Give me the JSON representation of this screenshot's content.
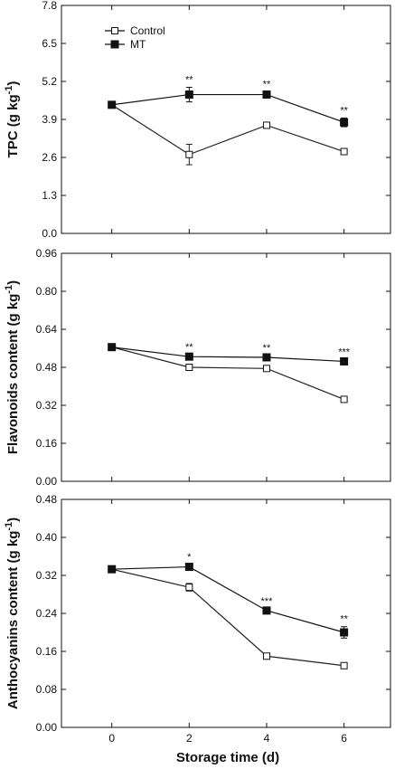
{
  "figure": {
    "xlabel": "Storage time (d)"
  },
  "chart_data": [
    {
      "type": "line",
      "x": [
        0,
        2,
        4,
        6
      ],
      "xlim": [
        -1.3,
        7.2
      ],
      "xticks": [
        "0",
        "2",
        "4",
        "6"
      ],
      "ylabel_prefix": "TPC (g kg",
      "ylabel_sup": "-1",
      "ylabel_suffix": ")",
      "ylim": [
        0.0,
        7.8
      ],
      "yticks": [
        "0.0",
        "1.3",
        "2.6",
        "3.9",
        "5.2",
        "6.5",
        "7.8"
      ],
      "series": [
        {
          "name": "Control",
          "marker": "open-square",
          "color": "#222222",
          "values": [
            4.4,
            2.7,
            3.7,
            2.8
          ],
          "errors": [
            0.05,
            0.35,
            0.08,
            0.06
          ]
        },
        {
          "name": "MT",
          "marker": "filled-square",
          "color": "#111111",
          "values": [
            4.4,
            4.75,
            4.75,
            3.8
          ],
          "errors": [
            0.05,
            0.25,
            0.1,
            0.15
          ]
        }
      ],
      "significance": [
        {
          "x": 2,
          "label": "**"
        },
        {
          "x": 4,
          "label": "**"
        },
        {
          "x": 6,
          "label": "**"
        }
      ],
      "legend": {
        "position": "top-left",
        "show": true
      }
    },
    {
      "type": "line",
      "x": [
        0,
        2,
        4,
        6
      ],
      "xlim": [
        -1.3,
        7.2
      ],
      "xticks": [
        "0",
        "2",
        "4",
        "6"
      ],
      "ylabel_prefix": "Flavonoids content (g kg",
      "ylabel_sup": "-1",
      "ylabel_suffix": ")",
      "ylim": [
        0.0,
        0.96
      ],
      "yticks": [
        "0.00",
        "0.16",
        "0.32",
        "0.48",
        "0.64",
        "0.80",
        "0.96"
      ],
      "series": [
        {
          "name": "Control",
          "marker": "open-square",
          "color": "#222222",
          "values": [
            0.565,
            0.48,
            0.475,
            0.345
          ],
          "errors": [
            0.005,
            0.01,
            0.01,
            0.008
          ]
        },
        {
          "name": "MT",
          "marker": "filled-square",
          "color": "#111111",
          "values": [
            0.565,
            0.525,
            0.522,
            0.505
          ],
          "errors": [
            0.005,
            0.008,
            0.008,
            0.008
          ]
        }
      ],
      "significance": [
        {
          "x": 2,
          "label": "**"
        },
        {
          "x": 4,
          "label": "**"
        },
        {
          "x": 6,
          "label": "***"
        }
      ],
      "legend": {
        "show": false
      }
    },
    {
      "type": "line",
      "x": [
        0,
        2,
        4,
        6
      ],
      "xlim": [
        -1.3,
        7.2
      ],
      "xticks": [
        "0",
        "2",
        "4",
        "6"
      ],
      "ylabel_prefix": "Anthocyanins content (g kg",
      "ylabel_sup": "-1",
      "ylabel_suffix": ")",
      "ylim": [
        0.0,
        0.48
      ],
      "yticks": [
        "0.00",
        "0.08",
        "0.16",
        "0.24",
        "0.32",
        "0.40",
        "0.48"
      ],
      "series": [
        {
          "name": "Control",
          "marker": "open-square",
          "color": "#222222",
          "values": [
            0.333,
            0.295,
            0.15,
            0.13
          ],
          "errors": [
            0.003,
            0.008,
            0.004,
            0.004
          ]
        },
        {
          "name": "MT",
          "marker": "filled-square",
          "color": "#111111",
          "values": [
            0.333,
            0.338,
            0.246,
            0.2
          ],
          "errors": [
            0.003,
            0.005,
            0.004,
            0.012
          ]
        }
      ],
      "significance": [
        {
          "x": 2,
          "label": "*"
        },
        {
          "x": 4,
          "label": "***"
        },
        {
          "x": 6,
          "label": "**"
        }
      ],
      "legend": {
        "show": false
      }
    }
  ]
}
